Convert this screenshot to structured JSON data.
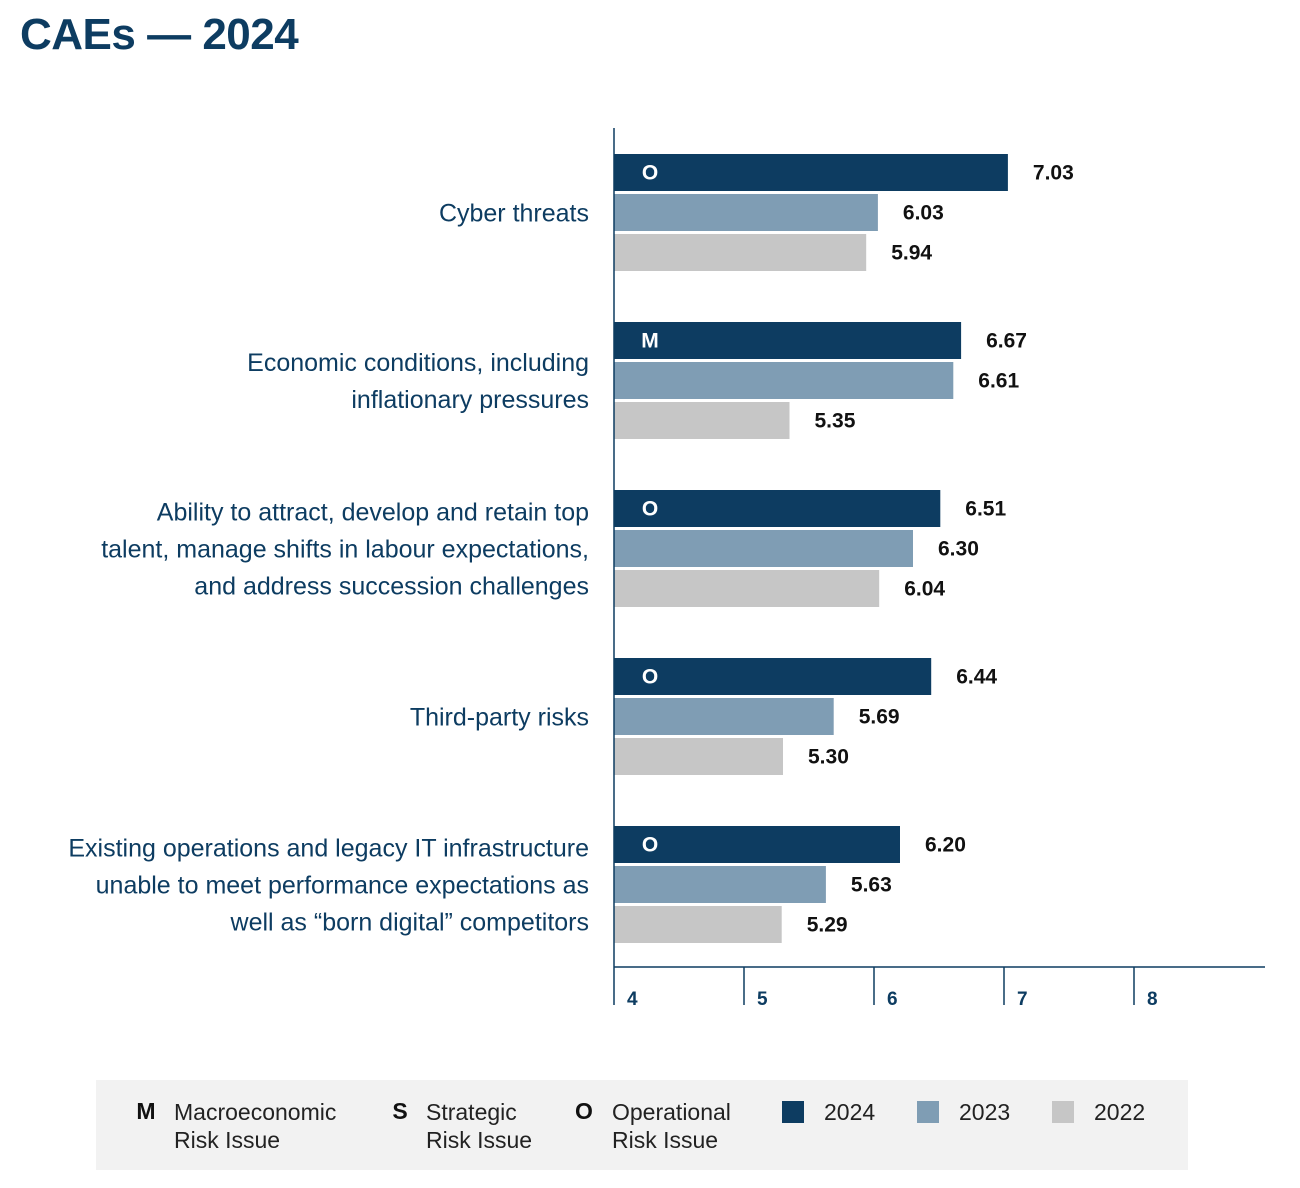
{
  "title": "CAEs — 2024",
  "colors": {
    "2024": "#0d3c61",
    "2023": "#7f9db4",
    "2022": "#c6c6c6",
    "text": "#0d3c61",
    "axis": "#0d3c61"
  },
  "chart_data": {
    "type": "bar",
    "orientation": "horizontal",
    "title": "CAEs — 2024",
    "xlim": [
      4,
      9
    ],
    "xticks": [
      4,
      5,
      6,
      7,
      8
    ],
    "categories": [
      {
        "lines": [
          "Cyber threats"
        ],
        "risk_type": "O"
      },
      {
        "lines": [
          "Economic conditions, including",
          "inflationary pressures"
        ],
        "risk_type": "M"
      },
      {
        "lines": [
          "Ability to attract, develop and retain top",
          "talent, manage shifts in labour expectations,",
          "and address succession challenges"
        ],
        "risk_type": "O"
      },
      {
        "lines": [
          "Third-party risks"
        ],
        "risk_type": "O"
      },
      {
        "lines": [
          "Existing operations and legacy IT infrastructure",
          "unable to meet performance expectations as",
          "well as “born digital” competitors"
        ],
        "risk_type": "O"
      }
    ],
    "series": [
      {
        "name": "2024",
        "values": [
          7.03,
          6.67,
          6.51,
          6.44,
          6.2
        ],
        "labels": [
          "7.03",
          "6.67",
          "6.51",
          "6.44",
          "6.20"
        ]
      },
      {
        "name": "2023",
        "values": [
          6.03,
          6.61,
          6.3,
          5.69,
          5.63
        ],
        "labels": [
          "6.03",
          "6.61",
          "6.30",
          "5.69",
          "5.63"
        ]
      },
      {
        "name": "2022",
        "values": [
          5.94,
          5.35,
          6.04,
          5.3,
          5.29
        ],
        "labels": [
          "5.94",
          "5.35",
          "6.04",
          "5.30",
          "5.29"
        ]
      }
    ],
    "legend": "bottom"
  },
  "legend": {
    "risk_types": [
      {
        "code": "M",
        "line1": "Macroeconomic",
        "line2": "Risk Issue"
      },
      {
        "code": "S",
        "line1": "Strategic",
        "line2": "Risk Issue"
      },
      {
        "code": "O",
        "line1": "Operational",
        "line2": "Risk Issue"
      }
    ],
    "years": [
      "2024",
      "2023",
      "2022"
    ]
  }
}
